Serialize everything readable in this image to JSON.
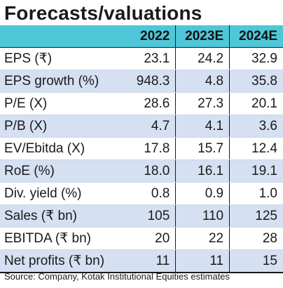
{
  "title": "Forecasts/valuations",
  "columns": [
    "2022",
    "2023E",
    "2024E"
  ],
  "rows": [
    {
      "label": "EPS (₹)",
      "values": [
        "23.1",
        "24.2",
        "32.9"
      ]
    },
    {
      "label": "EPS growth (%)",
      "values": [
        "948.3",
        "4.8",
        "35.8"
      ]
    },
    {
      "label": "P/E (X)",
      "values": [
        "28.6",
        "27.3",
        "20.1"
      ]
    },
    {
      "label": "P/B (X)",
      "values": [
        "4.7",
        "4.1",
        "3.6"
      ]
    },
    {
      "label": "EV/Ebitda (X)",
      "values": [
        "17.8",
        "15.7",
        "12.4"
      ]
    },
    {
      "label": "RoE (%)",
      "values": [
        "18.0",
        "16.1",
        "19.1"
      ]
    },
    {
      "label": "Div. yield (%)",
      "values": [
        "0.8",
        "0.9",
        "1.0"
      ]
    },
    {
      "label": "Sales (₹ bn)",
      "values": [
        "105",
        "110",
        "125"
      ]
    },
    {
      "label": "EBITDA (₹ bn)",
      "values": [
        "20",
        "22",
        "28"
      ]
    },
    {
      "label": "Net profits (₹ bn)",
      "values": [
        "11",
        "11",
        "15"
      ]
    }
  ],
  "source": "Source: Company, Kotak Institutional Equities estimates",
  "colors": {
    "header": "#4fc7d8",
    "alt_row": "#d5e0f2"
  }
}
